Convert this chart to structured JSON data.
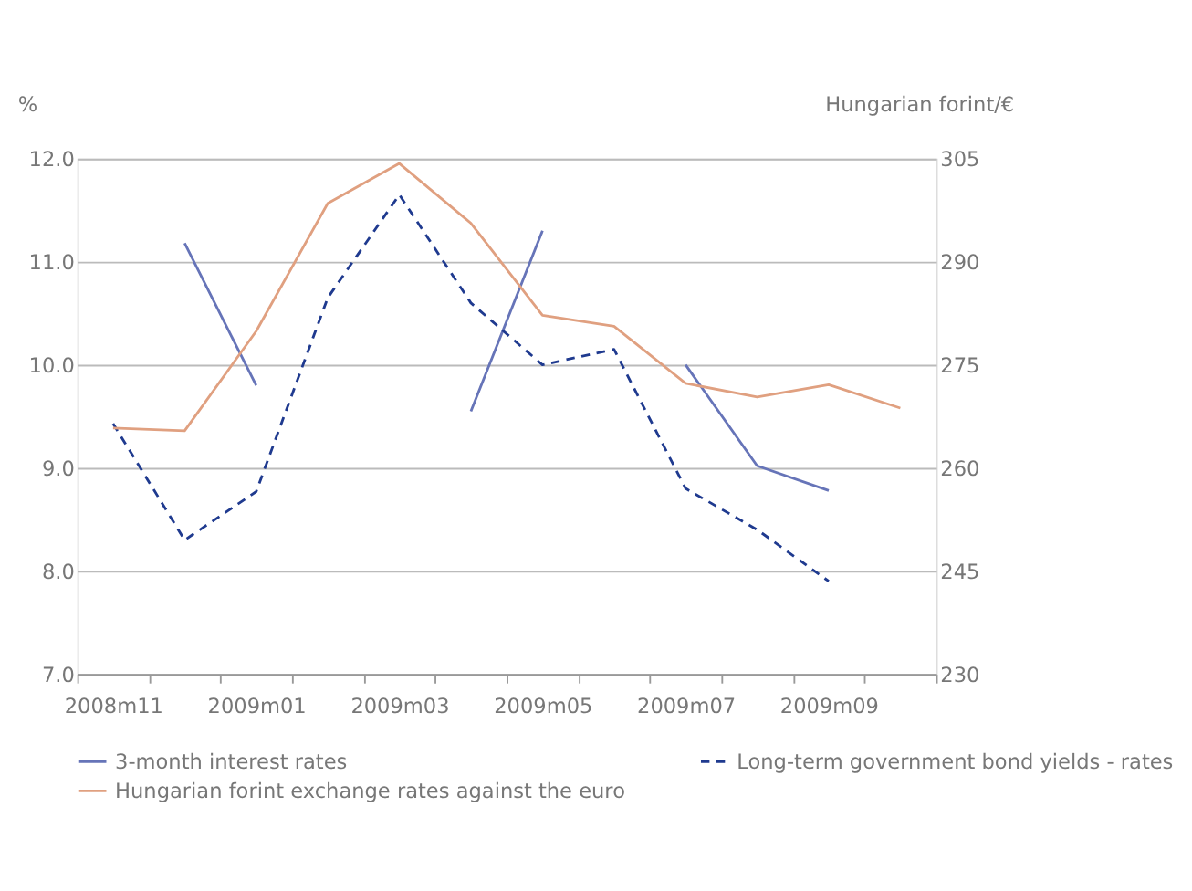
{
  "chart_data": {
    "type": "line",
    "categories": [
      "2008m11",
      null,
      "2009m01",
      null,
      "2009m03",
      null,
      "2009m05",
      null,
      "2009m07",
      null,
      "2009m09",
      null
    ],
    "ylabel": "%",
    "y2label": "Hungarian forint/€",
    "ylim": [
      7.0,
      12.0
    ],
    "yticks": [
      {
        "value": 7,
        "label": "7.0"
      },
      {
        "value": 8,
        "label": "8.0"
      },
      {
        "value": 9,
        "label": "9.0"
      },
      {
        "value": 10,
        "label": "10.0"
      },
      {
        "value": 11,
        "label": "11.0"
      },
      {
        "value": 12,
        "label": "12.0"
      }
    ],
    "y2lim": [
      230,
      305
    ],
    "y2ticks": [
      230,
      245,
      260,
      275,
      290,
      305
    ],
    "grid": "y",
    "legend": "bottom",
    "marker": "none",
    "series": [
      {
        "name": "3-month interest rates",
        "color": "#6674b8",
        "line_style": "solid",
        "values": [
          null,
          11.18,
          9.8,
          null,
          null,
          9.55,
          11.3,
          null,
          10.0,
          9.02,
          8.78,
          null
        ]
      },
      {
        "name": "Long-term government bond yields - rates",
        "color": "#1f3a8f",
        "line_style": "dashed",
        "values": [
          9.43,
          8.3,
          8.77,
          10.65,
          11.65,
          10.6,
          10.0,
          10.15,
          8.8,
          8.4,
          7.9,
          null
        ]
      },
      {
        "name": "Hungarian forint exchange rates against the euro",
        "color": "#e0a080",
        "line_style": "solid",
        "axis": "y2",
        "values": [
          265.8,
          265.4,
          279.9,
          298.5,
          304.3,
          295.6,
          282.2,
          280.6,
          272.3,
          270.3,
          272.1,
          268.7
        ]
      }
    ]
  }
}
